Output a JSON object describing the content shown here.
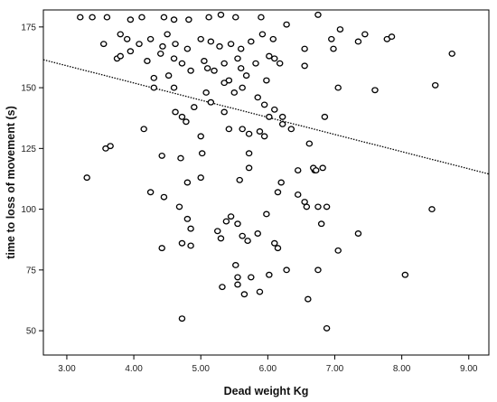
{
  "chart_data": {
    "type": "scatter",
    "title": "",
    "xlabel": "Dead weight Kg",
    "ylabel": "time to loss of movement (s)",
    "xlim": [
      2.65,
      9.3
    ],
    "ylim": [
      40,
      182
    ],
    "x_ticks": [
      3,
      4,
      5,
      6,
      7,
      8,
      9
    ],
    "x_tick_labels": [
      "3.00",
      "4.00",
      "5.00",
      "6.00",
      "7.00",
      "8.00",
      "9.00"
    ],
    "y_ticks": [
      50,
      75,
      100,
      125,
      150,
      175
    ],
    "y_tick_labels": [
      "50",
      "75",
      "100",
      "125",
      "150",
      "175"
    ],
    "grid": false,
    "legend": "none",
    "marker": "open-circle",
    "point_color": "#000000",
    "line_color": "#000000",
    "fit_line": {
      "style": "dotted",
      "x": [
        2.65,
        9.3
      ],
      "y": [
        161.5,
        114.5
      ]
    },
    "points": [
      [
        3.2,
        179
      ],
      [
        3.38,
        179
      ],
      [
        3.6,
        179
      ],
      [
        3.95,
        178
      ],
      [
        4.12,
        179
      ],
      [
        4.45,
        179
      ],
      [
        4.6,
        178
      ],
      [
        4.82,
        178
      ],
      [
        5.12,
        179
      ],
      [
        5.3,
        180
      ],
      [
        5.52,
        179
      ],
      [
        5.9,
        179
      ],
      [
        3.55,
        168
      ],
      [
        3.8,
        172
      ],
      [
        3.9,
        170
      ],
      [
        3.95,
        165
      ],
      [
        4.08,
        168
      ],
      [
        4.25,
        170
      ],
      [
        4.43,
        167
      ],
      [
        4.5,
        172
      ],
      [
        4.62,
        168
      ],
      [
        4.8,
        166
      ],
      [
        5.0,
        170
      ],
      [
        5.15,
        169
      ],
      [
        5.28,
        167
      ],
      [
        5.45,
        168
      ],
      [
        5.6,
        166
      ],
      [
        5.75,
        169
      ],
      [
        5.92,
        172
      ],
      [
        6.08,
        170
      ],
      [
        6.28,
        176
      ],
      [
        6.55,
        166
      ],
      [
        6.75,
        180
      ],
      [
        6.95,
        170
      ],
      [
        7.08,
        174
      ],
      [
        7.35,
        169
      ],
      [
        7.45,
        172
      ],
      [
        7.78,
        170
      ],
      [
        7.85,
        171
      ],
      [
        8.75,
        164
      ],
      [
        3.75,
        162
      ],
      [
        3.8,
        163
      ],
      [
        4.2,
        161
      ],
      [
        4.4,
        164
      ],
      [
        4.52,
        155
      ],
      [
        4.6,
        162
      ],
      [
        4.72,
        160
      ],
      [
        4.85,
        157
      ],
      [
        5.05,
        161
      ],
      [
        5.1,
        158
      ],
      [
        5.2,
        157
      ],
      [
        5.35,
        160
      ],
      [
        5.42,
        153
      ],
      [
        5.55,
        162
      ],
      [
        5.6,
        158
      ],
      [
        5.68,
        155
      ],
      [
        5.82,
        160
      ],
      [
        5.98,
        153
      ],
      [
        6.02,
        163
      ],
      [
        6.1,
        162
      ],
      [
        6.18,
        160
      ],
      [
        6.55,
        159
      ],
      [
        6.98,
        166
      ],
      [
        7.05,
        150
      ],
      [
        7.6,
        149
      ],
      [
        8.5,
        151
      ],
      [
        4.3,
        154
      ],
      [
        4.3,
        150
      ],
      [
        4.6,
        150
      ],
      [
        4.9,
        142
      ],
      [
        5.08,
        148
      ],
      [
        5.15,
        144
      ],
      [
        5.35,
        152
      ],
      [
        5.5,
        148
      ],
      [
        5.62,
        150
      ],
      [
        5.85,
        146
      ],
      [
        5.95,
        143
      ],
      [
        6.1,
        141
      ],
      [
        6.22,
        138
      ],
      [
        4.62,
        140
      ],
      [
        4.72,
        138
      ],
      [
        4.78,
        136
      ],
      [
        5.0,
        130
      ],
      [
        5.35,
        140
      ],
      [
        5.42,
        133
      ],
      [
        5.62,
        133
      ],
      [
        5.72,
        131
      ],
      [
        5.88,
        132
      ],
      [
        5.95,
        130
      ],
      [
        6.02,
        138
      ],
      [
        6.22,
        135
      ],
      [
        6.35,
        133
      ],
      [
        6.62,
        127
      ],
      [
        6.7,
        116
      ],
      [
        6.82,
        117
      ],
      [
        6.85,
        138
      ],
      [
        3.3,
        113
      ],
      [
        3.58,
        125
      ],
      [
        3.65,
        126
      ],
      [
        4.15,
        133
      ],
      [
        4.42,
        122
      ],
      [
        4.7,
        121
      ],
      [
        4.8,
        111
      ],
      [
        5.0,
        113
      ],
      [
        5.02,
        123
      ],
      [
        5.58,
        112
      ],
      [
        5.72,
        123
      ],
      [
        5.72,
        117
      ],
      [
        6.15,
        107
      ],
      [
        6.2,
        111
      ],
      [
        6.45,
        116
      ],
      [
        6.68,
        117
      ],
      [
        6.72,
        116
      ],
      [
        4.25,
        107
      ],
      [
        4.45,
        105
      ],
      [
        4.68,
        101
      ],
      [
        4.8,
        96
      ],
      [
        4.85,
        92
      ],
      [
        5.25,
        91
      ],
      [
        5.3,
        88
      ],
      [
        5.38,
        95
      ],
      [
        5.45,
        97
      ],
      [
        5.55,
        94
      ],
      [
        5.62,
        89
      ],
      [
        5.7,
        87
      ],
      [
        5.85,
        90
      ],
      [
        5.98,
        98
      ],
      [
        6.1,
        86
      ],
      [
        6.15,
        84
      ],
      [
        6.45,
        106
      ],
      [
        6.55,
        103
      ],
      [
        6.58,
        101
      ],
      [
        6.75,
        101
      ],
      [
        6.8,
        94
      ],
      [
        6.88,
        101
      ],
      [
        7.05,
        83
      ],
      [
        7.35,
        90
      ],
      [
        8.45,
        100
      ],
      [
        4.42,
        84
      ],
      [
        4.72,
        86
      ],
      [
        4.85,
        85
      ],
      [
        5.52,
        77
      ],
      [
        5.55,
        72
      ],
      [
        5.75,
        72
      ],
      [
        5.88,
        66
      ],
      [
        6.02,
        73
      ],
      [
        6.28,
        75
      ],
      [
        6.75,
        75
      ],
      [
        8.05,
        73
      ],
      [
        5.32,
        68
      ],
      [
        5.55,
        69
      ],
      [
        5.65,
        65
      ],
      [
        6.6,
        63
      ],
      [
        4.72,
        55
      ],
      [
        6.88,
        51
      ]
    ]
  }
}
